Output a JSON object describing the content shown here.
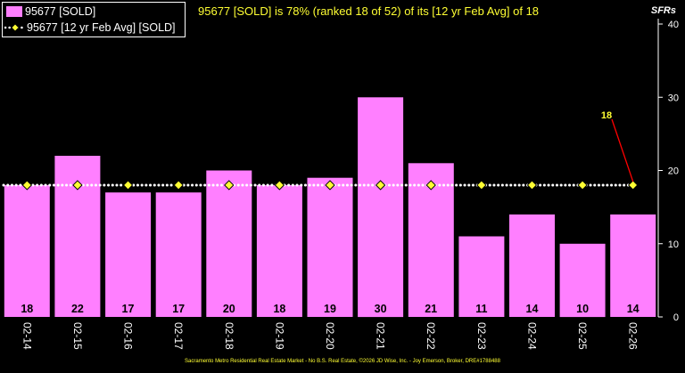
{
  "headline": "95677 [SOLD] is 78% (ranked 18 of 52) of its [12 yr Feb Avg] of 18",
  "legend": {
    "bar_series": "95677 [SOLD]",
    "avg_series": "95677 [12 yr Feb Avg] [SOLD]"
  },
  "footer": "Sacramento Metro Residential Real Estate Market - No B.S. Real Estate, ©2026 JD Wise, Inc. - Joy Emerson, Broker, DRE#1788488",
  "chart_data": {
    "type": "bar",
    "ylabel": "SFRs",
    "ylim": [
      0,
      40
    ],
    "yticks": [
      0,
      10,
      20,
      30,
      40
    ],
    "grid": false,
    "legend_position": "top-left",
    "categories": [
      "02-14",
      "02-15",
      "02-16",
      "02-17",
      "02-18",
      "02-19",
      "02-20",
      "02-21",
      "02-22",
      "02-23",
      "02-24",
      "02-25",
      "02-26"
    ],
    "series": [
      {
        "name": "95677 [SOLD]",
        "type": "bar",
        "values": [
          18,
          22,
          17,
          17,
          20,
          18,
          19,
          30,
          21,
          11,
          14,
          10,
          14
        ]
      },
      {
        "name": "95677 [12 yr Feb Avg] [SOLD]",
        "type": "line",
        "values": [
          18,
          18,
          18,
          18,
          18,
          18,
          18,
          18,
          18,
          18,
          18,
          18,
          18
        ]
      }
    ],
    "annotation": {
      "category": "02-26",
      "text": "18"
    },
    "colors": {
      "bar": "#ff7fff",
      "avg_line": "#ffffff",
      "avg_marker": "#ffff33",
      "axis": "#ffffff",
      "annotation_text": "#ffff33",
      "annotation_line": "#ff0000",
      "background": "#000000"
    }
  }
}
